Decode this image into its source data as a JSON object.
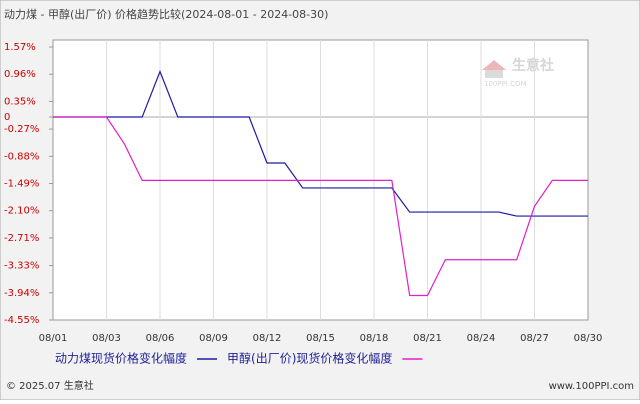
{
  "chart_data": {
    "type": "line",
    "title": "动力煤 - 甲醇(出厂价) 价格趋势比较(2024-08-01 - 2024-08-30)",
    "categories": [
      "08/01",
      null,
      null,
      "08/03",
      null,
      null,
      "08/06",
      null,
      null,
      "08/09",
      null,
      null,
      "08/12",
      null,
      null,
      "08/15",
      null,
      null,
      "08/18",
      null,
      null,
      "08/21",
      null,
      null,
      "08/24",
      null,
      null,
      "08/27",
      null,
      null,
      "08/30"
    ],
    "series": [
      {
        "name": "动力煤现货价格变化幅度",
        "color": "#1a1aa6",
        "values": [
          0,
          0,
          0,
          0,
          0,
          0,
          1.02,
          0,
          0,
          0,
          0,
          0,
          -1.03,
          -1.03,
          -1.59,
          -1.59,
          -1.59,
          -1.59,
          -1.59,
          -1.59,
          -2.13,
          -2.13,
          -2.13,
          -2.13,
          -2.13,
          -2.13,
          -2.22,
          -2.22,
          -2.22,
          -2.22,
          -2.22
        ]
      },
      {
        "name": "甲醇(出厂价)现货价格变化幅度",
        "color": "#e020c8",
        "values": [
          0,
          0,
          0,
          0,
          -0.6,
          -1.42,
          -1.42,
          -1.42,
          -1.42,
          -1.42,
          -1.42,
          -1.42,
          -1.42,
          -1.42,
          -1.42,
          -1.42,
          -1.42,
          -1.42,
          -1.42,
          -1.42,
          -4.0,
          -4.0,
          -3.2,
          -3.2,
          -3.2,
          -3.2,
          -3.2,
          -2.0,
          -1.42,
          -1.42,
          -1.42
        ]
      }
    ],
    "ylim": [
      -4.55,
      1.57
    ],
    "yticks": [
      {
        "value": 1.57,
        "label": "1.57%"
      },
      {
        "value": 0.96,
        "label": "0.96%"
      },
      {
        "value": 0.35,
        "label": "0.35%"
      },
      0,
      {
        "value": -0.27,
        "label": "-0.27%"
      },
      {
        "value": -0.88,
        "label": "-0.88%"
      },
      {
        "value": -1.49,
        "label": "-1.49%"
      },
      {
        "value": -2.1,
        "label": "-2.10%"
      },
      {
        "value": -2.71,
        "label": "-2.71%"
      },
      {
        "value": -3.33,
        "label": "-3.33%"
      },
      {
        "value": -3.94,
        "label": "-3.94%"
      },
      {
        "value": -4.55,
        "label": "-4.55%"
      }
    ],
    "grid": true,
    "watermark": "生意社",
    "watermark_sub": "100PPI.COM",
    "source": "© 2025.07 生意社",
    "website": "www.100PPI.com"
  }
}
